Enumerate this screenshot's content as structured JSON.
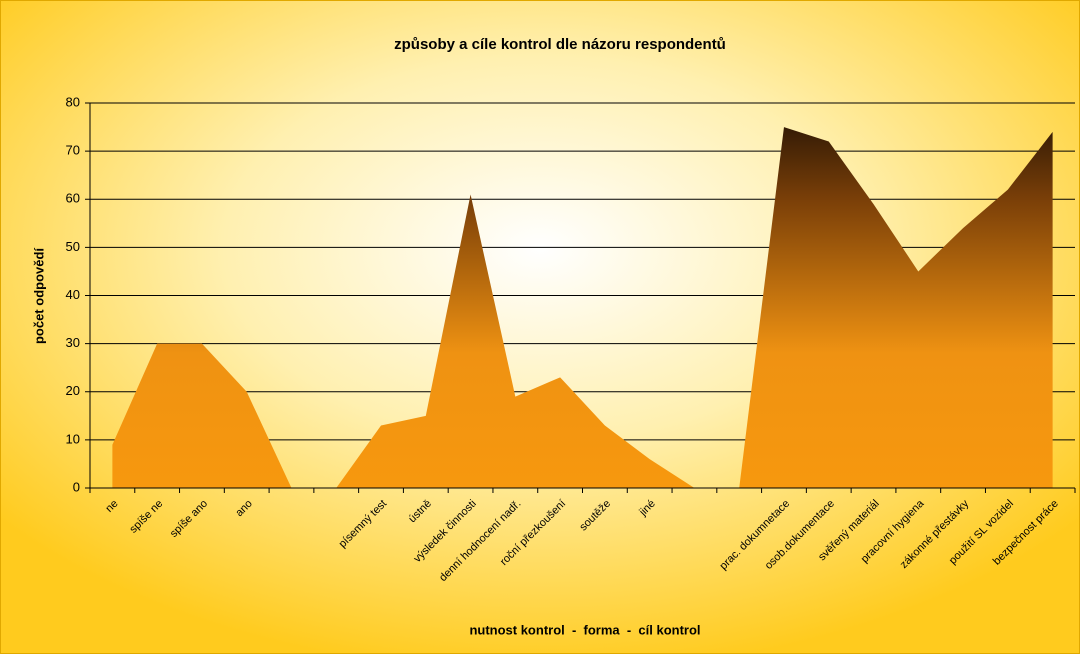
{
  "chart_data": {
    "type": "area",
    "title": "způsoby a cíle kontrol dle názoru respondentů",
    "x_label": "nutnost kontrol  -  forma  -  cíl kontrol",
    "y_label": "počet odpovědí",
    "categories": [
      "ne",
      "spíše ne",
      "spíše ano",
      "ano",
      null,
      null,
      "písemný test",
      "ústně",
      "výsledek činnosti",
      "denní hodnocení nadř.",
      "roční přezkoušení",
      "soutěže",
      "jiné",
      null,
      null,
      "prac. dokumnetace",
      "osob.dokumentace",
      "svěřený materiál",
      "pracovní hygiena",
      "zákonné přestávky",
      "použití SL vozidel",
      "bezpečnost práce"
    ],
    "values": [
      9,
      30,
      30,
      20,
      0,
      0,
      13,
      15,
      61,
      19,
      23,
      13,
      6,
      0,
      0,
      75,
      72,
      59,
      45,
      54,
      62,
      74
    ],
    "ylim": [
      0,
      80
    ],
    "yticks": [
      0,
      10,
      20,
      30,
      40,
      50,
      60,
      70,
      80
    ],
    "grid": true,
    "colors": [
      "#f7980e",
      "#ef9212",
      "#7a3f08",
      "#1e1004"
    ]
  }
}
